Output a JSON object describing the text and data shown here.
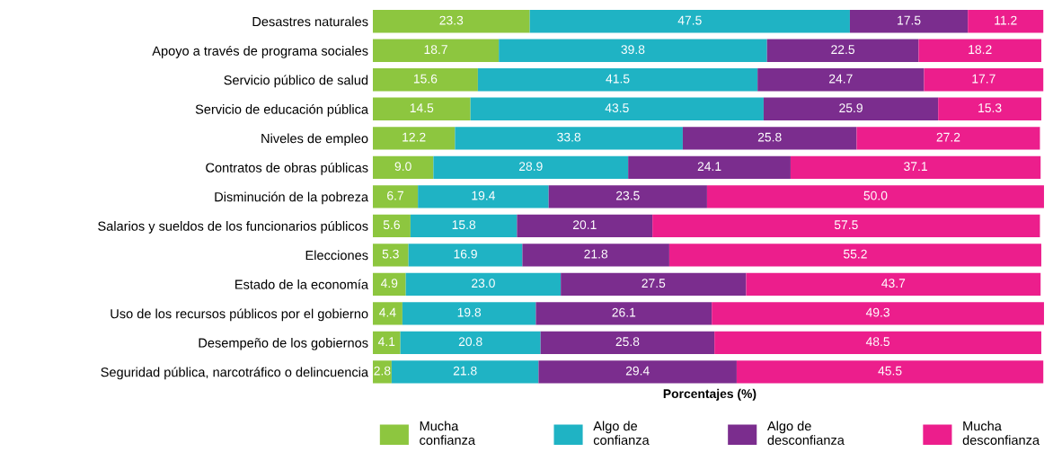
{
  "chart_data": {
    "type": "bar",
    "orientation": "horizontal",
    "stacked": true,
    "xlabel": "Porcentajes (%)",
    "xlim": [
      0,
      100
    ],
    "tick_labels": "y",
    "grid": false,
    "legend": "bottom",
    "categories": [
      "Desastres naturales",
      "Apoyo a través de programa sociales",
      "Servicio público de salud",
      "Servicio de educación pública",
      "Niveles de empleo",
      "Contratos de obras públicas",
      "Disminución de la pobreza",
      "Salarios y sueldos de los funcionarios públicos",
      "Elecciones",
      "Estado de la economía",
      "Uso de los recursos públicos por el gobierno",
      "Desempeño de los gobiernos",
      "Seguridad pública, narcotráfico o delincuencia"
    ],
    "series": [
      {
        "name": "Mucha\nconfianza",
        "color": "#8dc63f",
        "values": [
          23.3,
          18.7,
          15.6,
          14.5,
          12.2,
          9.0,
          6.7,
          5.6,
          5.3,
          4.9,
          4.4,
          4.1,
          2.8
        ],
        "value_labels": [
          "23.3",
          "18.7",
          "15.6",
          "14.5",
          "12.2",
          "9.0",
          "6.7",
          "5.6",
          "5.3",
          "4.9",
          "4.4",
          "4.1",
          "2.8"
        ]
      },
      {
        "name": "Algo de\nconfianza",
        "color": "#1fb3c4",
        "values": [
          47.5,
          39.8,
          41.5,
          43.5,
          33.8,
          28.9,
          19.4,
          15.8,
          16.9,
          23.0,
          19.8,
          20.8,
          21.8
        ],
        "value_labels": [
          "47.5",
          "39.8",
          "41.5",
          "43.5",
          "33.8",
          "28.9",
          "19.4",
          "15.8",
          "16.9",
          "23.0",
          "19.8",
          "20.8",
          "21.8"
        ]
      },
      {
        "name": "Algo de\ndesconfianza",
        "color": "#7b2d8e",
        "values": [
          17.5,
          22.5,
          24.7,
          25.9,
          25.8,
          24.1,
          23.5,
          20.1,
          21.8,
          27.5,
          26.1,
          25.8,
          29.4
        ],
        "value_labels": [
          "17.5",
          "22.5",
          "24.7",
          "25.9",
          "25.8",
          "24.1",
          "23.5",
          "20.1",
          "21.8",
          "27.5",
          "26.1",
          "25.8",
          "29.4"
        ]
      },
      {
        "name": "Mucha\ndesconfianza",
        "color": "#ec1e8c",
        "values": [
          11.2,
          18.2,
          17.7,
          15.3,
          27.2,
          37.1,
          50.0,
          57.5,
          55.2,
          43.7,
          49.3,
          48.5,
          45.5
        ],
        "value_labels": [
          "11.2",
          "18.2",
          "17.7",
          "15.3",
          "27.2",
          "37.1",
          "50.0",
          "57.5",
          "55.2",
          "43.7",
          "49.3",
          "48.5",
          "45.5"
        ]
      }
    ]
  }
}
